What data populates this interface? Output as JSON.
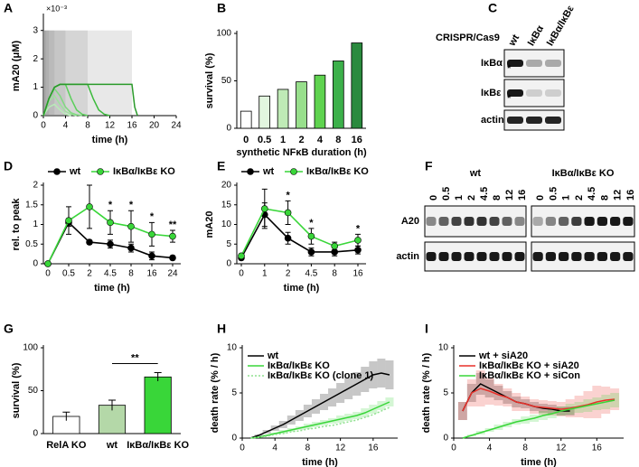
{
  "chart_data": [
    {
      "panel": "A",
      "type": "line",
      "y_label": "mA20 (μM)",
      "y_scale_label": "×10⁻³",
      "x_label": "time (h)",
      "xlim": [
        0,
        24
      ],
      "xticks": [
        0,
        4,
        8,
        12,
        16,
        20,
        24
      ],
      "ylim": [
        0,
        3.5
      ],
      "yticks": [
        0,
        1,
        2,
        3
      ],
      "shade_durations": [
        0.5,
        1,
        2,
        4,
        8,
        16
      ],
      "shade_height": 3,
      "shade_color": "#8c8c8c",
      "series": [
        {
          "color": "#b8ecb8",
          "x": [
            0,
            1,
            2,
            3,
            4,
            5
          ],
          "values": [
            0,
            0.3,
            0.4,
            0.2,
            0.05,
            0
          ]
        },
        {
          "color": "#9ee29e",
          "x": [
            0,
            1,
            2,
            3,
            4,
            5,
            6
          ],
          "values": [
            0,
            0.5,
            0.7,
            0.4,
            0.15,
            0.05,
            0
          ]
        },
        {
          "color": "#7fd97f",
          "x": [
            0,
            1,
            2,
            3,
            4,
            5,
            6,
            7
          ],
          "values": [
            0,
            0.6,
            0.95,
            0.7,
            0.3,
            0.1,
            0.03,
            0
          ]
        },
        {
          "color": "#5ccf5c",
          "x": [
            0,
            1,
            2,
            3,
            4,
            5,
            6,
            7,
            8
          ],
          "values": [
            0,
            0.6,
            1.0,
            1.1,
            1.1,
            0.6,
            0.2,
            0.05,
            0
          ]
        },
        {
          "color": "#3dbb3d",
          "x": [
            0,
            1,
            2,
            3,
            8,
            9,
            10,
            11,
            12
          ],
          "values": [
            0,
            0.6,
            1.0,
            1.1,
            1.1,
            0.6,
            0.2,
            0.05,
            0
          ]
        },
        {
          "color": "#2a9a2a",
          "x": [
            0,
            1,
            2,
            3,
            16,
            16.5,
            17
          ],
          "values": [
            0,
            0.6,
            1.0,
            1.1,
            1.1,
            0.3,
            0
          ]
        }
      ]
    },
    {
      "panel": "B",
      "type": "bar",
      "y_label": "survival (%)",
      "x_label": "synthetic NFκB duration (h)",
      "categories": [
        "0",
        "0.5",
        "1",
        "2",
        "4",
        "8",
        "16"
      ],
      "values": [
        18,
        34,
        41,
        49,
        56,
        71,
        90
      ],
      "colors": [
        "#ffffff",
        "#e2f6df",
        "#bfeab6",
        "#98df8c",
        "#5fd34f",
        "#3cb04a",
        "#2a8a3e"
      ],
      "ylim": [
        0,
        100
      ],
      "yticks": [
        0,
        50,
        100
      ]
    },
    {
      "panel": "D",
      "type": "line",
      "y_label": "rel. to peak",
      "x_label": "time (h)",
      "categories": [
        "0",
        "0.5",
        "2",
        "4.5",
        "8",
        "16",
        "24"
      ],
      "ylim": [
        0,
        2
      ],
      "yticks": [
        0,
        0.5,
        1,
        1.5,
        2
      ],
      "legend": "top",
      "significance": [
        null,
        null,
        null,
        "*",
        "*",
        "*",
        "**"
      ],
      "series": [
        {
          "name": "wt",
          "color": "#000000",
          "values": [
            0,
            1.05,
            0.55,
            0.5,
            0.4,
            0.2,
            0.15
          ],
          "errors": [
            0,
            0.1,
            0.05,
            0.1,
            0.1,
            0.1,
            0.05
          ]
        },
        {
          "name": "IκBα/IκBε KO",
          "color": "#39d639",
          "values": [
            0,
            1.1,
            1.45,
            1.05,
            0.95,
            0.75,
            0.7
          ],
          "errors": [
            0,
            0.35,
            0.55,
            0.3,
            0.4,
            0.3,
            0.15
          ]
        }
      ]
    },
    {
      "panel": "E",
      "type": "line",
      "y_label": "mA20",
      "x_label": "time (h)",
      "categories": [
        "0",
        "1",
        "2",
        "4.5",
        "8",
        "16"
      ],
      "ylim": [
        0,
        20
      ],
      "yticks": [
        0,
        5,
        10,
        15,
        20
      ],
      "legend": "top",
      "significance": [
        null,
        null,
        "*",
        "*",
        null,
        "*"
      ],
      "series": [
        {
          "name": "wt",
          "color": "#000000",
          "values": [
            1.5,
            12.5,
            6.5,
            3,
            3,
            3.5
          ],
          "errors": [
            0.5,
            3,
            1.5,
            1,
            1,
            1
          ]
        },
        {
          "name": "IκBα/IκBε KO",
          "color": "#39d639",
          "values": [
            2,
            14,
            13,
            7,
            4.5,
            6
          ],
          "errors": [
            0.5,
            5,
            3,
            2,
            1,
            1.5
          ]
        }
      ]
    },
    {
      "panel": "G",
      "type": "bar",
      "y_label": "survival (%)",
      "categories": [
        "RelA KO",
        "wt",
        "IκBα/IκBε KO"
      ],
      "values": [
        20,
        33,
        66
      ],
      "errors": [
        5,
        6,
        5
      ],
      "colors": [
        "#ffffff",
        "#b4d8a8",
        "#39d639"
      ],
      "ylim": [
        0,
        100
      ],
      "yticks": [
        0,
        50,
        100
      ],
      "significance": [
        {
          "text": "**",
          "from": 1,
          "to": 2
        }
      ]
    },
    {
      "panel": "H",
      "type": "line",
      "y_label": "death rate (% / h)",
      "x_label": "time (h)",
      "xlim": [
        0,
        19
      ],
      "xticks": [
        0,
        4,
        8,
        12,
        16
      ],
      "ylim": [
        0,
        10
      ],
      "yticks": [
        0,
        5,
        10
      ],
      "legend": "upper left",
      "series": [
        {
          "name": "wt",
          "color": "#000000",
          "x": [
            1,
            2,
            3,
            4,
            5,
            6,
            7,
            8,
            9,
            10,
            11,
            12,
            13,
            14,
            15,
            16,
            17,
            18
          ],
          "values": [
            0,
            0.3,
            0.7,
            1.1,
            1.5,
            2,
            2.5,
            3,
            3.5,
            4,
            4.5,
            5,
            5.5,
            6,
            6.5,
            7,
            7.2,
            7
          ],
          "errors": [
            0,
            0.1,
            0.2,
            0.3,
            0.4,
            0.5,
            0.6,
            0.7,
            0.8,
            0.9,
            1,
            1.1,
            1.2,
            1.3,
            1.4,
            1.5,
            1.6,
            1.6
          ]
        },
        {
          "name": "IκBα/IκBε KO",
          "color": "#39d639",
          "x": [
            1,
            2,
            3,
            4,
            5,
            6,
            7,
            8,
            9,
            10,
            11,
            12,
            13,
            14,
            15,
            16,
            17,
            18
          ],
          "values": [
            0,
            0.1,
            0.3,
            0.5,
            0.7,
            0.9,
            1.1,
            1.3,
            1.5,
            1.7,
            1.9,
            2.1,
            2.3,
            2.5,
            2.8,
            3.2,
            3.6,
            4
          ],
          "errors": [
            0,
            0.1,
            0.1,
            0.1,
            0.2,
            0.2,
            0.2,
            0.3,
            0.3,
            0.3,
            0.3,
            0.4,
            0.4,
            0.4,
            0.5,
            0.5,
            0.5,
            0.5
          ]
        },
        {
          "name": "IκBα/IκBε KO (clone 1)",
          "color": "#8fe08f",
          "dotted": true,
          "x": [
            1,
            2,
            3,
            4,
            5,
            6,
            7,
            8,
            9,
            10,
            11,
            12,
            13,
            14,
            15,
            16,
            17,
            18
          ],
          "values": [
            0,
            0.1,
            0.2,
            0.4,
            0.5,
            0.7,
            0.8,
            1,
            1.1,
            1.3,
            1.4,
            1.6,
            1.8,
            2,
            2.3,
            2.6,
            3,
            3.4
          ]
        }
      ]
    },
    {
      "panel": "I",
      "type": "line",
      "y_label": "death rate (% / h)",
      "x_label": "time (h)",
      "xlim": [
        0,
        19
      ],
      "xticks": [
        0,
        4,
        8,
        12,
        16
      ],
      "ylim": [
        0,
        10
      ],
      "yticks": [
        0,
        5,
        10
      ],
      "legend": "upper left",
      "series": [
        {
          "name": "wt + siA20",
          "color": "#000000",
          "x": [
            1,
            2,
            3,
            4,
            5,
            6,
            7,
            8,
            9,
            10,
            11,
            12,
            13
          ],
          "values": [
            3,
            5,
            6,
            5.5,
            5,
            4.5,
            4,
            3.8,
            3.5,
            3.3,
            3.2,
            3,
            3
          ],
          "errors": [
            1,
            1,
            1.2,
            1,
            0.8,
            0.7,
            0.6,
            0.5,
            0.5,
            0.5,
            0.5,
            0.5,
            0.5
          ]
        },
        {
          "name": "IκBα/IκBε KO + siA20",
          "color": "#e8302a",
          "x": [
            1,
            2,
            3,
            4,
            5,
            6,
            7,
            8,
            9,
            10,
            11,
            12,
            13,
            14,
            15,
            16,
            17,
            18
          ],
          "values": [
            3,
            5,
            5.5,
            5.2,
            4.8,
            4.5,
            4,
            3.8,
            3.5,
            3.4,
            3.3,
            3.2,
            3.3,
            3.5,
            3.7,
            4,
            4.2,
            4.3
          ],
          "errors": [
            1,
            1.5,
            2,
            1.5,
            1.2,
            1,
            1,
            0.8,
            0.8,
            0.8,
            0.8,
            0.8,
            1,
            1.2,
            1.5,
            1.8,
            1.5,
            1.2
          ]
        },
        {
          "name": "IκBα/IκBε KO + siCon",
          "color": "#39d639",
          "x": [
            1,
            2,
            3,
            4,
            5,
            6,
            7,
            8,
            9,
            10,
            11,
            12,
            13,
            14,
            15,
            16,
            17,
            18
          ],
          "values": [
            0,
            0.3,
            0.6,
            0.9,
            1.2,
            1.5,
            1.8,
            2,
            2.2,
            2.5,
            2.7,
            3,
            3.2,
            3.4,
            3.6,
            3.8,
            4,
            4.2
          ],
          "errors": [
            0,
            0.1,
            0.2,
            0.2,
            0.3,
            0.3,
            0.3,
            0.4,
            0.4,
            0.5,
            0.5,
            0.5,
            0.6,
            0.6,
            0.7,
            0.7,
            0.8,
            0.8
          ]
        }
      ]
    }
  ],
  "blot_panels": [
    {
      "panel": "C",
      "title": "CRISPR/Cas9",
      "lanes": [
        "wt",
        "IκBα",
        "IκBα/IκBε"
      ],
      "rows": [
        "IκBα",
        "IκBε",
        "actin"
      ],
      "marker": "*"
    },
    {
      "panel": "F",
      "groups": [
        {
          "name": "wt",
          "lanes": [
            "0",
            "0.5",
            "1",
            "2",
            "4.5",
            "8",
            "12",
            "16"
          ]
        },
        {
          "name": "IκBα/IκBε KO",
          "lanes": [
            "0",
            "0.5",
            "1",
            "2",
            "4.5",
            "8",
            "12",
            "16"
          ]
        }
      ],
      "rows": [
        "A20",
        "actin"
      ]
    }
  ]
}
